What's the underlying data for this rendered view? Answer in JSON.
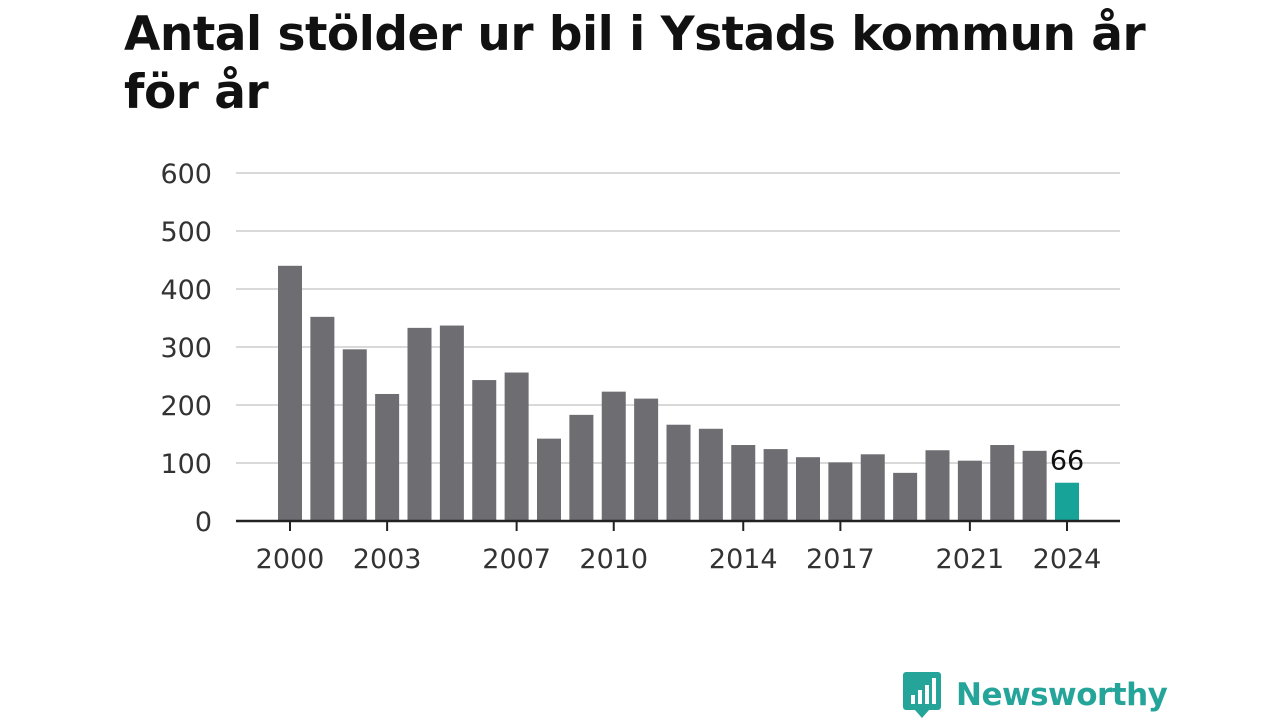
{
  "title": "Antal stölder ur bil i Ystads kommun år för år",
  "logo_text": "Newsworthy",
  "logo_icon": "bar-chart-speech-bubble-icon",
  "colors": {
    "bar": "#6e6d72",
    "highlight": "#17a398",
    "grid": "#d9d9d9",
    "axis": "#222222",
    "text": "#333333",
    "brand": "#25a49a"
  },
  "chart_data": {
    "type": "bar",
    "categories": [
      "2000",
      "2001",
      "2002",
      "2003",
      "2004",
      "2005",
      "2006",
      "2007",
      "2008",
      "2009",
      "2010",
      "2011",
      "2012",
      "2013",
      "2014",
      "2015",
      "2016",
      "2017",
      "2018",
      "2019",
      "2020",
      "2021",
      "2022",
      "2023",
      "2024"
    ],
    "values": [
      440,
      352,
      296,
      219,
      333,
      337,
      243,
      256,
      142,
      183,
      223,
      211,
      166,
      159,
      131,
      124,
      110,
      101,
      115,
      83,
      122,
      104,
      131,
      121,
      66
    ],
    "title": "Antal stölder ur bil i Ystads kommun år för år",
    "xlabel": "",
    "ylabel": "",
    "ylim": [
      0,
      600
    ],
    "yticks": [
      0,
      100,
      200,
      300,
      400,
      500,
      600
    ],
    "xtick_labels": [
      "2000",
      "2003",
      "2007",
      "2010",
      "2014",
      "2017",
      "2021",
      "2024"
    ],
    "highlight_category": "2024",
    "data_labels": [
      {
        "category": "2024",
        "text": "66"
      }
    ],
    "grid": true,
    "legend": "none"
  }
}
